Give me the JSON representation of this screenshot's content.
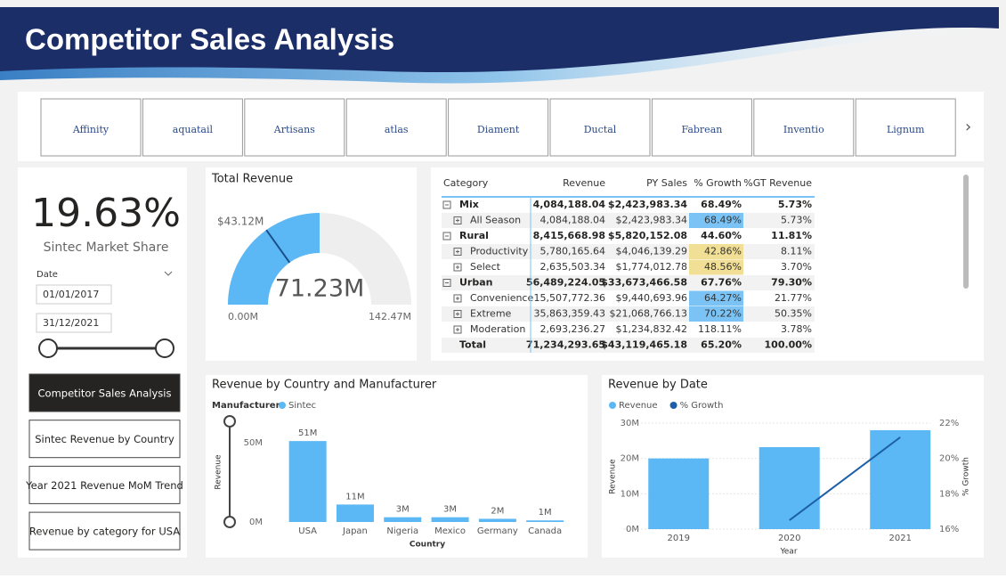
{
  "header": {
    "title": "Competitor Sales Analysis"
  },
  "logos": [
    "Affinity",
    "aquatail",
    "Artisans",
    "atlas",
    "Diament",
    "Ductal",
    "Fabrean",
    "Inventio",
    "Lignum"
  ],
  "kpi": {
    "value": "19.63%",
    "label": "Sintec Market Share"
  },
  "date_slicer": {
    "label": "Date",
    "start": "01/01/2017",
    "end": "31/12/2021"
  },
  "nav": [
    "Competitor Sales Analysis",
    "Sintec Revenue by Country",
    "Year 2021 Revenue MoM Trend",
    "Revenue by category for USA"
  ],
  "table": {
    "columns": [
      "Category",
      "Revenue",
      "PY Sales",
      "% Growth",
      "%GT Revenue"
    ],
    "rows": [
      {
        "label": "Mix",
        "values": [
          "4,084,188.04",
          "$2,423,983.34",
          "68.49%",
          "5.73%"
        ],
        "level": 0,
        "expandable": true
      },
      {
        "label": "All Season",
        "values": [
          "4,084,188.04",
          "$2,423,983.34",
          "68.49%",
          "5.73%"
        ],
        "level": 1,
        "expandable": true,
        "highlight": "#7cc3f5"
      },
      {
        "label": "Rural",
        "values": [
          "8,415,668.98",
          "$5,820,152.08",
          "44.60%",
          "11.81%"
        ],
        "level": 0,
        "expandable": true
      },
      {
        "label": "Productivity",
        "values": [
          "5,780,165.64",
          "$4,046,139.29",
          "42.86%",
          "8.11%"
        ],
        "level": 1,
        "expandable": true,
        "highlight": "#f1df96"
      },
      {
        "label": "Select",
        "values": [
          "2,635,503.34",
          "$1,774,012.78",
          "48.56%",
          "3.70%"
        ],
        "level": 1,
        "expandable": true,
        "highlight": "#f1df96"
      },
      {
        "label": "Urban",
        "values": [
          "56,489,224.05",
          "$33,673,466.58",
          "67.76%",
          "79.30%"
        ],
        "level": 0,
        "expandable": true
      },
      {
        "label": "Convenience",
        "values": [
          "15,507,772.36",
          "$9,440,693.96",
          "64.27%",
          "21.77%"
        ],
        "level": 1,
        "expandable": true,
        "highlight": "#7cc3f5"
      },
      {
        "label": "Extreme",
        "values": [
          "35,863,359.43",
          "$21,068,766.13",
          "70.22%",
          "50.35%"
        ],
        "level": 1,
        "expandable": true,
        "highlight": "#7cc3f5"
      },
      {
        "label": "Moderation",
        "values": [
          "2,693,236.27",
          "$1,234,832.42",
          "118.11%",
          "3.78%"
        ],
        "level": 1,
        "expandable": true
      },
      {
        "label": "Total",
        "values": [
          "71,234,293.65",
          "$43,119,465.18",
          "65.20%",
          "100.00%"
        ],
        "level": 0,
        "expandable": false
      }
    ]
  },
  "chart_data": [
    {
      "type": "gauge",
      "title": "Total Revenue",
      "value": 71.23,
      "value_label": "71.23M",
      "min": 0,
      "min_label": "0.00M",
      "max": 142.47,
      "max_label": "142.47M",
      "target": 43.12,
      "target_label": "$43.12M",
      "color": "#5bb8f5",
      "track_color": "#eeeeee",
      "target_color": "#1a4f8a"
    },
    {
      "type": "bar",
      "title": "Revenue by Country and Manufacturer",
      "legend_title": "Manufacturer",
      "xlabel": "Country",
      "ylabel": "Revenue",
      "categories": [
        "USA",
        "Japan",
        "Nigeria",
        "Mexico",
        "Germany",
        "Canada"
      ],
      "series": [
        {
          "name": "Sintec",
          "color": "#5bb8f5",
          "values": [
            51,
            11,
            3,
            3,
            2,
            1
          ],
          "value_labels": [
            "51M",
            "11M",
            "3M",
            "3M",
            "2M",
            "1M"
          ]
        }
      ],
      "ylim": [
        0,
        55
      ],
      "yticks": [
        {
          "value": 0,
          "label": "0M"
        },
        {
          "value": 50,
          "label": "50M"
        }
      ]
    },
    {
      "type": "combo",
      "title": "Revenue by Date",
      "xlabel": "Year",
      "ylabel": "Revenue",
      "y2label": "% Growth",
      "categories": [
        "2019",
        "2020",
        "2021"
      ],
      "series": [
        {
          "name": "Revenue",
          "type": "bar",
          "color": "#5bb8f5",
          "values": [
            20,
            23.2,
            28
          ]
        },
        {
          "name": "% Growth",
          "type": "line",
          "axis": "y2",
          "color": "#1a5fa8",
          "values": [
            null,
            16.5,
            21.2
          ]
        }
      ],
      "ylim": [
        0,
        30
      ],
      "yticks": [
        {
          "value": 0,
          "label": "0M"
        },
        {
          "value": 10,
          "label": "10M"
        },
        {
          "value": 20,
          "label": "20M"
        },
        {
          "value": 30,
          "label": "30M"
        }
      ],
      "y2lim": [
        16,
        22
      ],
      "y2ticks": [
        {
          "value": 16,
          "label": "16%"
        },
        {
          "value": 18,
          "label": "18%"
        },
        {
          "value": 20,
          "label": "20%"
        },
        {
          "value": 22,
          "label": "22%"
        }
      ],
      "grid": true
    }
  ]
}
